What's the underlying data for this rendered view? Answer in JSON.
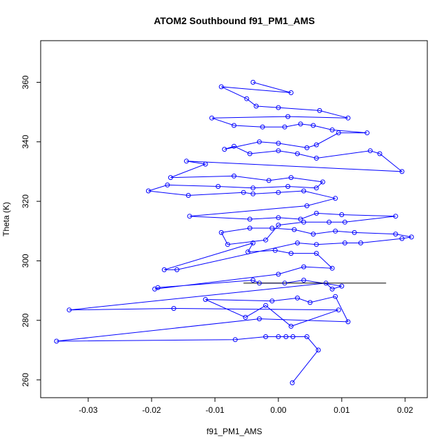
{
  "chart_data": {
    "type": "line",
    "title": "ATOM2 Southbound f91_PM1_AMS",
    "xlabel": "f91_PM1_AMS",
    "ylabel": "Theta (K)",
    "xlim": [
      -0.0375,
      0.0235
    ],
    "ylim": [
      254,
      374
    ],
    "x_ticks": [
      -0.03,
      -0.02,
      -0.01,
      0.0,
      0.01,
      0.02
    ],
    "x_tick_labels": [
      "-0.03",
      "-0.02",
      "-0.01",
      "0.00",
      "0.01",
      "0.02"
    ],
    "y_ticks": [
      260,
      280,
      300,
      320,
      340,
      360
    ],
    "y_tick_labels": [
      "260",
      "280",
      "300",
      "320",
      "340",
      "360"
    ],
    "grid": false,
    "legend": "none",
    "series_color": "#0000ff",
    "marker": "open-circle",
    "points": [
      [
        0.0022,
        259.0
      ],
      [
        0.0063,
        270.0
      ],
      [
        0.0045,
        274.5
      ],
      [
        0.0023,
        274.5
      ],
      [
        0.0012,
        274.5
      ],
      [
        0.0,
        274.5
      ],
      [
        -0.002,
        274.5
      ],
      [
        -0.0068,
        273.5
      ],
      [
        -0.035,
        273.0
      ],
      [
        -0.003,
        280.5
      ],
      [
        0.011,
        279.5
      ],
      [
        0.009,
        288.0
      ],
      [
        0.005,
        286.0
      ],
      [
        0.003,
        287.5
      ],
      [
        -0.001,
        286.5
      ],
      [
        -0.0115,
        287.0
      ],
      [
        -0.0052,
        281.0
      ],
      [
        -0.002,
        285.0
      ],
      [
        0.002,
        278.0
      ],
      [
        0.0095,
        283.5
      ],
      [
        -0.0165,
        284.0
      ],
      [
        -0.033,
        283.5
      ],
      [
        0.0075,
        292.5
      ],
      [
        0.0085,
        290.5
      ],
      [
        0.01,
        291.5
      ],
      [
        0.004,
        293.5
      ],
      [
        0.001,
        292.5
      ],
      [
        -0.003,
        292.5
      ],
      [
        -0.004,
        293.5
      ],
      [
        -0.019,
        291.0
      ],
      [
        -0.0195,
        290.5
      ],
      [
        0.0,
        295.5
      ],
      [
        0.004,
        298.0
      ],
      [
        0.0085,
        297.5
      ],
      [
        0.006,
        302.5
      ],
      [
        0.002,
        302.5
      ],
      [
        -0.0005,
        303.5
      ],
      [
        -0.0048,
        303.0
      ],
      [
        -0.004,
        306.0
      ],
      [
        -0.018,
        297.0
      ],
      [
        -0.016,
        297.0
      ],
      [
        0.003,
        306.0
      ],
      [
        0.006,
        305.5
      ],
      [
        0.0105,
        306.0
      ],
      [
        0.013,
        306.0
      ],
      [
        0.0195,
        307.5
      ],
      [
        0.021,
        308.0
      ],
      [
        0.0185,
        309.0
      ],
      [
        0.012,
        309.5
      ],
      [
        0.009,
        310.0
      ],
      [
        0.0055,
        309.0
      ],
      [
        0.0025,
        310.5
      ],
      [
        -0.001,
        311.0
      ],
      [
        -0.0045,
        311.0
      ],
      [
        -0.009,
        309.5
      ],
      [
        -0.008,
        305.5
      ],
      [
        -0.002,
        307.0
      ],
      [
        0.0,
        312.0
      ],
      [
        0.004,
        313.0
      ],
      [
        0.008,
        313.0
      ],
      [
        0.0105,
        313.0
      ],
      [
        0.0185,
        315.0
      ],
      [
        0.01,
        315.5
      ],
      [
        0.006,
        316.0
      ],
      [
        0.0035,
        314.0
      ],
      [
        0.0,
        314.5
      ],
      [
        -0.0045,
        314.0
      ],
      [
        -0.014,
        315.0
      ],
      [
        0.0045,
        318.5
      ],
      [
        0.009,
        321.0
      ],
      [
        0.004,
        323.5
      ],
      [
        0.0,
        323.0
      ],
      [
        -0.004,
        322.5
      ],
      [
        -0.0055,
        323.0
      ],
      [
        -0.0142,
        322.0
      ],
      [
        -0.0205,
        323.5
      ],
      [
        -0.0175,
        325.5
      ],
      [
        -0.0095,
        325.0
      ],
      [
        -0.004,
        324.5
      ],
      [
        0.0015,
        325.0
      ],
      [
        0.006,
        324.5
      ],
      [
        0.007,
        326.5
      ],
      [
        0.002,
        328.0
      ],
      [
        -0.0015,
        327.0
      ],
      [
        -0.007,
        328.5
      ],
      [
        -0.017,
        328.0
      ],
      [
        -0.0115,
        332.5
      ],
      [
        -0.0145,
        333.5
      ],
      [
        0.0195,
        330.0
      ],
      [
        0.016,
        336.0
      ],
      [
        0.0145,
        337.0
      ],
      [
        0.006,
        334.5
      ],
      [
        0.003,
        336.0
      ],
      [
        0.0,
        337.0
      ],
      [
        -0.0045,
        336.0
      ],
      [
        -0.007,
        338.5
      ],
      [
        -0.0085,
        337.5
      ],
      [
        -0.003,
        340.0
      ],
      [
        0.0,
        339.5
      ],
      [
        0.0045,
        338.0
      ],
      [
        0.006,
        339.0
      ],
      [
        0.0095,
        343.0
      ],
      [
        0.014,
        343.0
      ],
      [
        0.0085,
        344.0
      ],
      [
        0.0055,
        345.5
      ],
      [
        0.0035,
        346.0
      ],
      [
        0.001,
        345.0
      ],
      [
        -0.0025,
        345.0
      ],
      [
        -0.007,
        345.5
      ],
      [
        -0.0105,
        348.0
      ],
      [
        0.0015,
        348.5
      ],
      [
        0.011,
        348.0
      ],
      [
        0.0065,
        350.5
      ],
      [
        0.0,
        351.5
      ],
      [
        -0.0035,
        352.0
      ],
      [
        -0.005,
        354.5
      ],
      [
        -0.009,
        358.5
      ],
      [
        0.002,
        356.5
      ],
      [
        -0.004,
        360.0
      ]
    ],
    "black_segment": [
      [
        -0.0055,
        292.5
      ],
      [
        0.017,
        292.5
      ]
    ]
  }
}
